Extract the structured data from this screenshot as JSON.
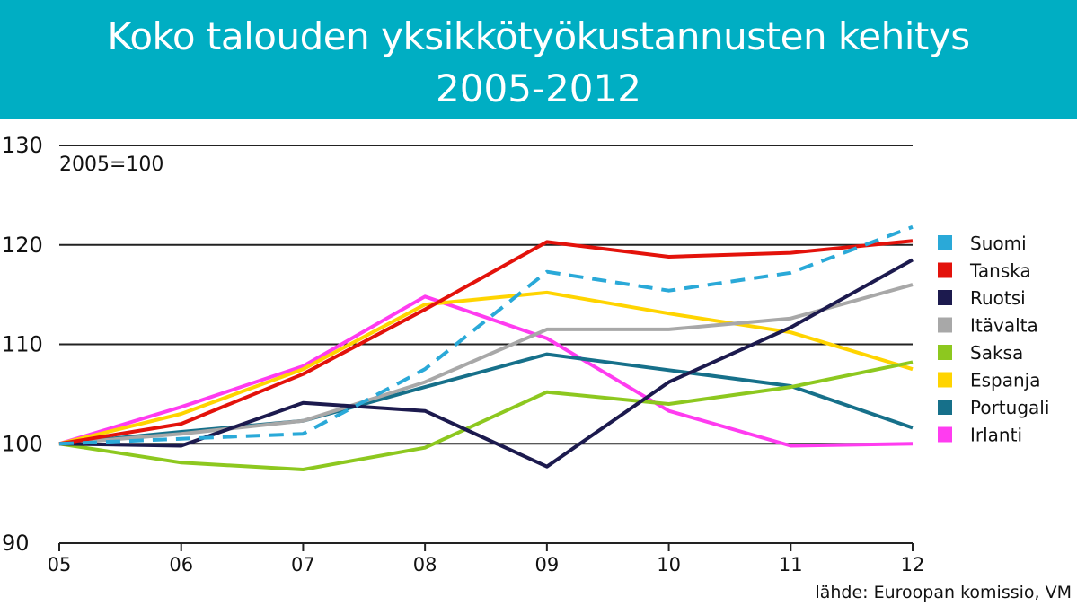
{
  "header": {
    "title_line1": "Koko talouden yksikkötyökustannusten kehitys",
    "title_line2": "2005-2012"
  },
  "chart_data": {
    "type": "line",
    "title": "Koko talouden yksikkötyökustannusten kehitys 2005-2012",
    "base_label": "2005=100",
    "source": "lähde: Euroopan komissio, VM",
    "categories": [
      "05",
      "06",
      "07",
      "08",
      "09",
      "10",
      "11",
      "12"
    ],
    "ylim": [
      90,
      130
    ],
    "yticks": [
      90,
      100,
      110,
      120,
      130
    ],
    "grid": true,
    "legend_position": "right",
    "series": [
      {
        "name": "Suomi",
        "color": "#2aa9d8",
        "dashed": true,
        "values": [
          100,
          100.5,
          101,
          107.5,
          117.3,
          115.4,
          117.2,
          121.8
        ]
      },
      {
        "name": "Tanska",
        "color": "#e3120b",
        "dashed": false,
        "values": [
          100,
          102,
          107,
          113.5,
          120.3,
          118.8,
          119.2,
          120.4
        ]
      },
      {
        "name": "Ruotsi",
        "color": "#1c1a4e",
        "dashed": false,
        "values": [
          100,
          99.8,
          104.1,
          103.3,
          97.7,
          106.2,
          111.7,
          118.5
        ]
      },
      {
        "name": "Itävalta",
        "color": "#a8a8a8",
        "dashed": false,
        "values": [
          100,
          101,
          102.3,
          106.2,
          111.5,
          111.5,
          112.6,
          116
        ]
      },
      {
        "name": "Saksa",
        "color": "#8dc81f",
        "dashed": false,
        "values": [
          100,
          98.1,
          97.4,
          99.6,
          105.2,
          104,
          105.7,
          108.2
        ]
      },
      {
        "name": "Espanja",
        "color": "#ffd400",
        "dashed": false,
        "values": [
          100,
          103,
          107.5,
          114,
          115.2,
          113.1,
          111.2,
          107.5
        ]
      },
      {
        "name": "Portugali",
        "color": "#16708a",
        "dashed": false,
        "values": [
          100,
          101.2,
          102.3,
          105.7,
          109,
          107.4,
          105.8,
          101.6
        ]
      },
      {
        "name": "Irlanti",
        "color": "#ff3cf0",
        "dashed": false,
        "values": [
          100,
          103.7,
          107.8,
          114.8,
          110.6,
          103.3,
          99.8,
          100
        ]
      }
    ]
  }
}
